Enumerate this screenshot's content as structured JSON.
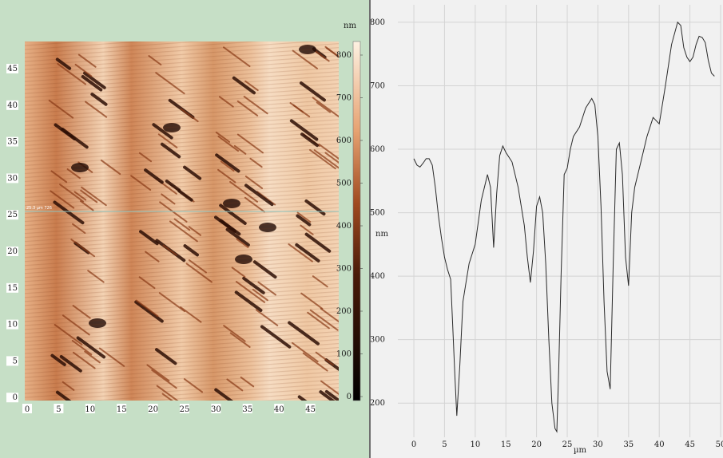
{
  "left_image": {
    "x_ticks": [
      "0",
      "5",
      "10",
      "15",
      "20",
      "25",
      "30",
      "35",
      "40",
      "45"
    ],
    "y_ticks": [
      "45",
      "40",
      "35",
      "30",
      "25",
      "20",
      "15",
      "10",
      "5",
      "0"
    ],
    "colorbar_unit": "nm",
    "colorbar_ticks": [
      "800",
      "700",
      "600",
      "500",
      "400",
      "300",
      "200",
      "100",
      "0"
    ],
    "cursor_label": "25.3 µm 726",
    "colors": {
      "light": "#f7dcc3",
      "mid": "#d28b5c",
      "dark": "#3a1608",
      "panel_bg": "#c6dfc6"
    }
  },
  "chart_data": {
    "type": "line",
    "title": "",
    "xlabel": "µm",
    "ylabel": "nm",
    "xlim": [
      -3,
      50
    ],
    "ylim": [
      150,
      820
    ],
    "x_ticks": [
      0,
      5,
      10,
      15,
      20,
      25,
      30,
      35,
      40,
      45,
      50
    ],
    "y_ticks": [
      200,
      300,
      400,
      500,
      600,
      700,
      800
    ],
    "grid": true,
    "line_color": "#2a2a2a",
    "series": [
      {
        "name": "",
        "x": [
          0,
          0.5,
          1,
          1.5,
          2,
          2.5,
          3,
          3.5,
          4,
          4.5,
          5,
          5.5,
          6,
          6.3,
          6.7,
          7,
          7.5,
          8,
          8.5,
          9,
          10,
          11,
          12,
          12.5,
          13,
          13.5,
          14,
          14.5,
          15,
          16,
          17,
          18,
          18.5,
          19,
          19.5,
          20,
          20.5,
          21,
          21.5,
          22,
          22.5,
          23,
          23.3,
          23.6,
          24,
          24.5,
          25,
          25.5,
          26,
          27,
          28,
          29,
          29.5,
          30,
          30.5,
          31,
          31.5,
          32,
          32.5,
          33,
          33.5,
          34,
          34.5,
          35,
          35.5,
          36,
          37,
          38,
          39,
          40,
          41,
          42,
          43,
          43.5,
          44,
          44.5,
          45,
          45.5,
          46,
          46.5,
          47,
          47.5,
          48,
          48.5,
          49
        ],
        "y": [
          585,
          575,
          572,
          578,
          585,
          585,
          575,
          540,
          495,
          460,
          430,
          410,
          395,
          330,
          240,
          180,
          260,
          360,
          390,
          420,
          450,
          520,
          560,
          540,
          445,
          530,
          590,
          605,
          595,
          580,
          540,
          480,
          430,
          390,
          440,
          510,
          525,
          500,
          420,
          300,
          200,
          160,
          155,
          250,
          400,
          560,
          570,
          600,
          620,
          635,
          665,
          680,
          670,
          620,
          510,
          360,
          250,
          222,
          420,
          600,
          610,
          560,
          430,
          385,
          500,
          540,
          580,
          620,
          650,
          640,
          700,
          765,
          800,
          795,
          760,
          745,
          738,
          745,
          765,
          778,
          776,
          768,
          740,
          720,
          715
        ]
      }
    ]
  }
}
